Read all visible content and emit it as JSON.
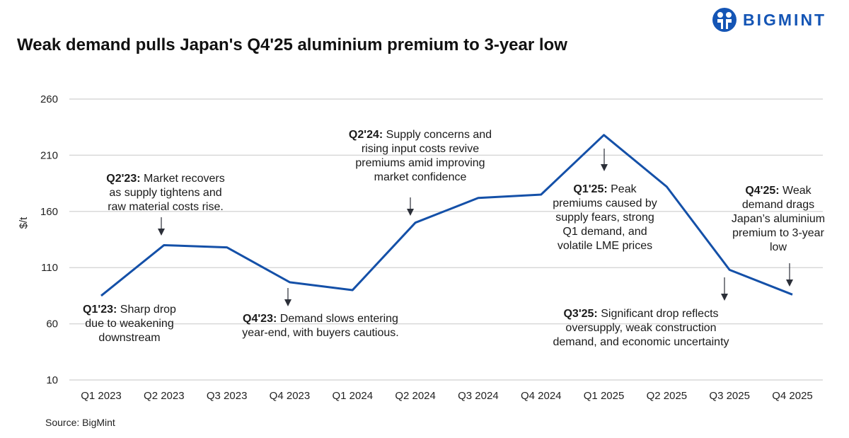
{
  "title": "Weak demand pulls Japan's Q4'25 aluminium premium to 3-year low",
  "logo": {
    "text": "BIGMINT",
    "color": "#1455b5"
  },
  "source": "Source: BigMint",
  "chart_data": {
    "type": "line",
    "title": "Weak demand pulls Japan's Q4'25 aluminium premium to 3-year low",
    "xlabel": "",
    "ylabel": "$/t",
    "ylim": [
      10,
      260
    ],
    "yticks": [
      10,
      60,
      110,
      160,
      210,
      260
    ],
    "grid": true,
    "categories": [
      "Q1 2023",
      "Q2 2023",
      "Q3 2023",
      "Q4 2023",
      "Q1 2024",
      "Q2 2024",
      "Q3 2024",
      "Q4 2024",
      "Q1 2025",
      "Q2 2025",
      "Q3 2025",
      "Q4 2025"
    ],
    "values": [
      85,
      130,
      128,
      97,
      90,
      150,
      172,
      175,
      228,
      182,
      108,
      86
    ],
    "line_color": "#1450a8",
    "annotations": [
      {
        "category": "Q1 2023",
        "bold": "Q1'23:",
        "lines": [
          " Sharp drop",
          "due to weakening",
          "downstream"
        ]
      },
      {
        "category": "Q2 2023",
        "bold": "Q2'23:",
        "lines": [
          " Market recovers",
          "as supply tightens and",
          "raw material costs rise."
        ]
      },
      {
        "category": "Q4 2023",
        "bold": "Q4'23:",
        "lines": [
          " Demand slows entering",
          "year-end, with buyers cautious."
        ]
      },
      {
        "category": "Q2 2024",
        "bold": "Q2'24:",
        "lines": [
          " Supply concerns and",
          "rising input costs revive",
          "premiums amid improving",
          "market confidence"
        ]
      },
      {
        "category": "Q1 2025",
        "bold": "Q1'25:",
        "lines": [
          " Peak",
          "premiums caused by",
          "supply fears, strong",
          "Q1 demand, and",
          "volatile LME prices"
        ]
      },
      {
        "category": "Q3 2025",
        "bold": "Q3'25:",
        "lines": [
          " Significant drop reflects",
          "oversupply, weak construction",
          "demand, and economic uncertainty"
        ]
      },
      {
        "category": "Q4 2025",
        "bold": "Q4'25:",
        "lines": [
          " Weak",
          "demand drags",
          "Japan’s aluminium",
          "premium to 3-year",
          "low"
        ]
      }
    ]
  }
}
